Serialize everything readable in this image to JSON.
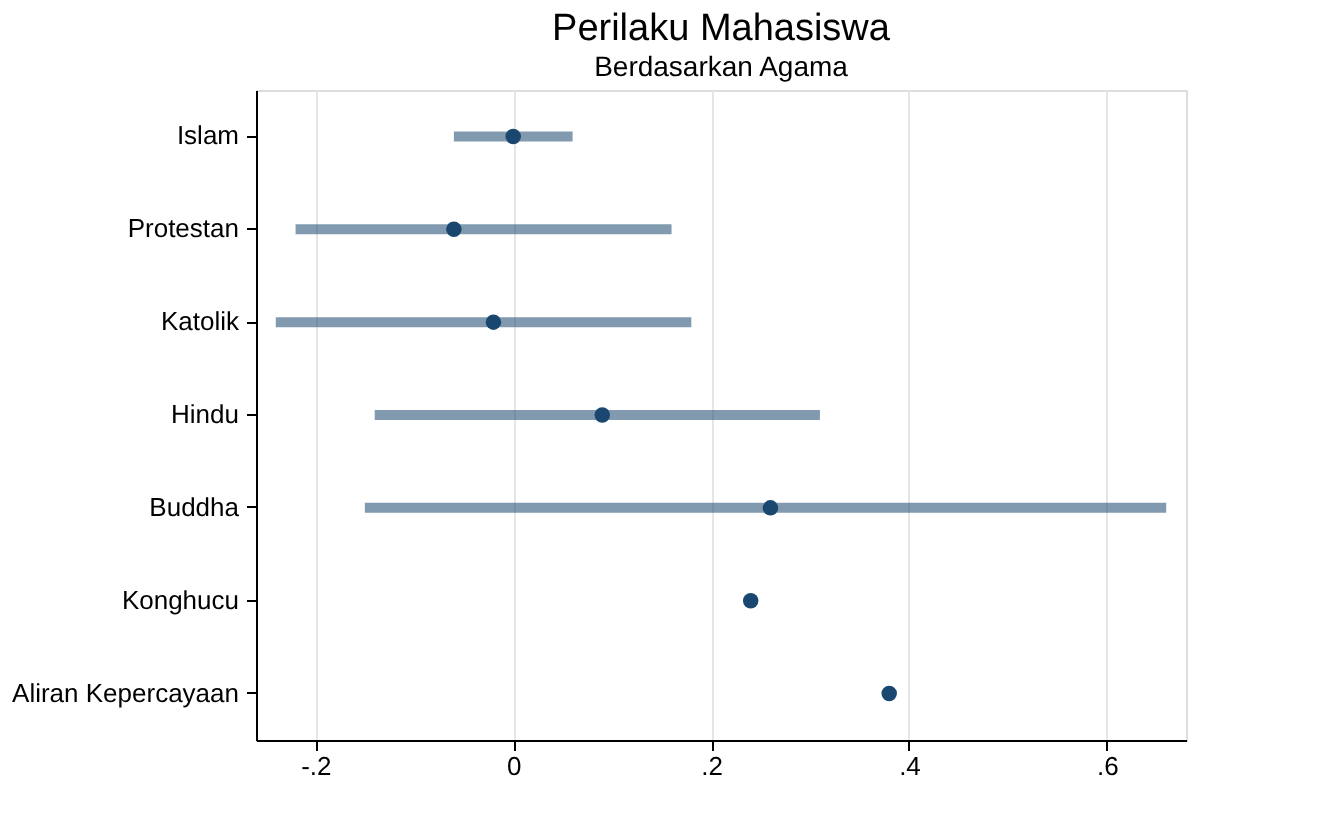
{
  "chart_data": {
    "type": "scatter",
    "orientation": "horizontal",
    "title": "Perilaku Mahasiswa",
    "subtitle": "Berdasarkan Agama",
    "categories": [
      "Islam",
      "Protestan",
      "Katolik",
      "Hindu",
      "Buddha",
      "Konghucu",
      "Aliran Kepercayaan"
    ],
    "series": [
      {
        "color": "#1a476f",
        "values": [
          0.0,
          -0.06,
          -0.02,
          0.09,
          0.26,
          0.24,
          0.38
        ],
        "errors": [
          [
            -0.06,
            0.06
          ],
          [
            -0.22,
            0.16
          ],
          [
            -0.24,
            0.18
          ],
          [
            -0.14,
            0.31
          ],
          [
            -0.15,
            0.66
          ],
          null,
          null
        ]
      }
    ],
    "xlim": [
      -0.26,
      0.68
    ],
    "xticks": [
      {
        "value": -0.2,
        "label": "-.2"
      },
      0,
      {
        "value": 0.2,
        "label": ".2"
      },
      {
        "value": 0.4,
        "label": ".4"
      },
      {
        "value": 0.6,
        "label": ".6"
      }
    ],
    "grid": "x",
    "marker": "circle"
  }
}
